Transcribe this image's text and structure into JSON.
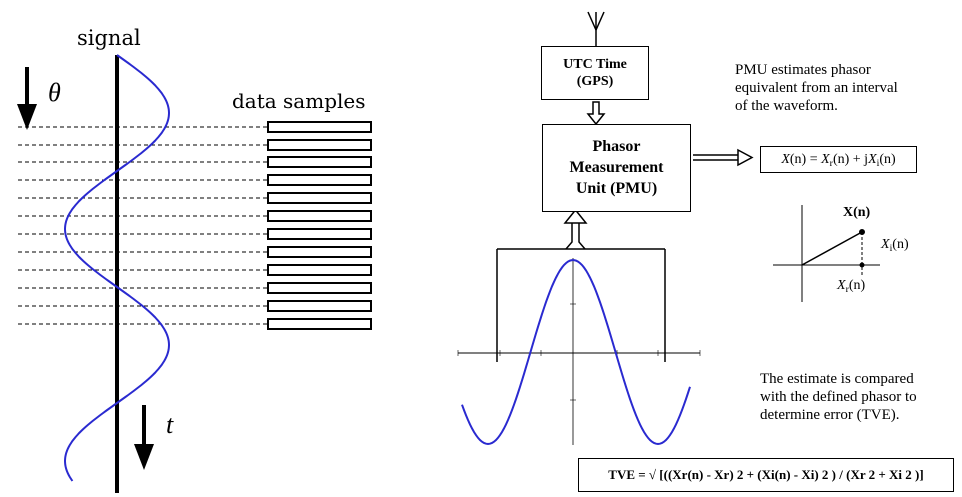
{
  "left": {
    "signal_label": "signal",
    "theta_label": "θ",
    "samples_label": "data samples",
    "time_label": "t"
  },
  "pmu": {
    "utc_box": "UTC Time (GPS)",
    "utc_line1": "UTC Time",
    "utc_line2": "(GPS)",
    "pmu_line1": "Phasor",
    "pmu_line2": "Measurement",
    "pmu_line3": "Unit (PMU)",
    "estimate_text": [
      "PMU estimates phasor",
      "equivalent from an interval",
      "of the waveform."
    ],
    "phasor_eq": {
      "X": "X",
      "n": "(n)",
      "eq": " = ",
      "Xr": "X",
      "r": "r",
      "plus": " + j",
      "Xi": "X",
      "i": "i"
    },
    "vector_labels": {
      "top": "X(n)",
      "xi": "X",
      "xi_sub": "i",
      "xi_n": "(n)",
      "xr": "X",
      "xr_sub": "r",
      "xr_n": "(n)"
    },
    "compare_text": [
      "The estimate is compared",
      "with the defined phasor to",
      "determine error (TVE)."
    ],
    "tve_text": "TVE = √ [((Xr(n) - Xr) 2 + (Xi(n) - Xi) 2 ) / (Xr 2 + Xi 2 )]"
  },
  "colors": {
    "wave": "#2a2ad0",
    "line": "#000000"
  },
  "icons": [
    "antenna-icon",
    "down-arrow-icon",
    "double-arrow-icon"
  ]
}
